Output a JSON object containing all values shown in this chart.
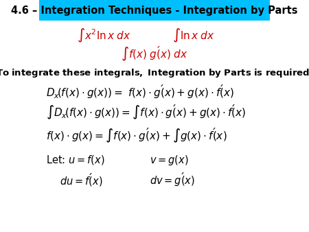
{
  "title": "4.6 – Integration Techniques - Integration by Parts",
  "title_bg": "#00BFFF",
  "title_color": "#000000",
  "bg_color": "#FFFFFF",
  "red_color": "#CC0000",
  "black_color": "#000000",
  "fig_width": 4.5,
  "fig_height": 3.38,
  "dpi": 100
}
